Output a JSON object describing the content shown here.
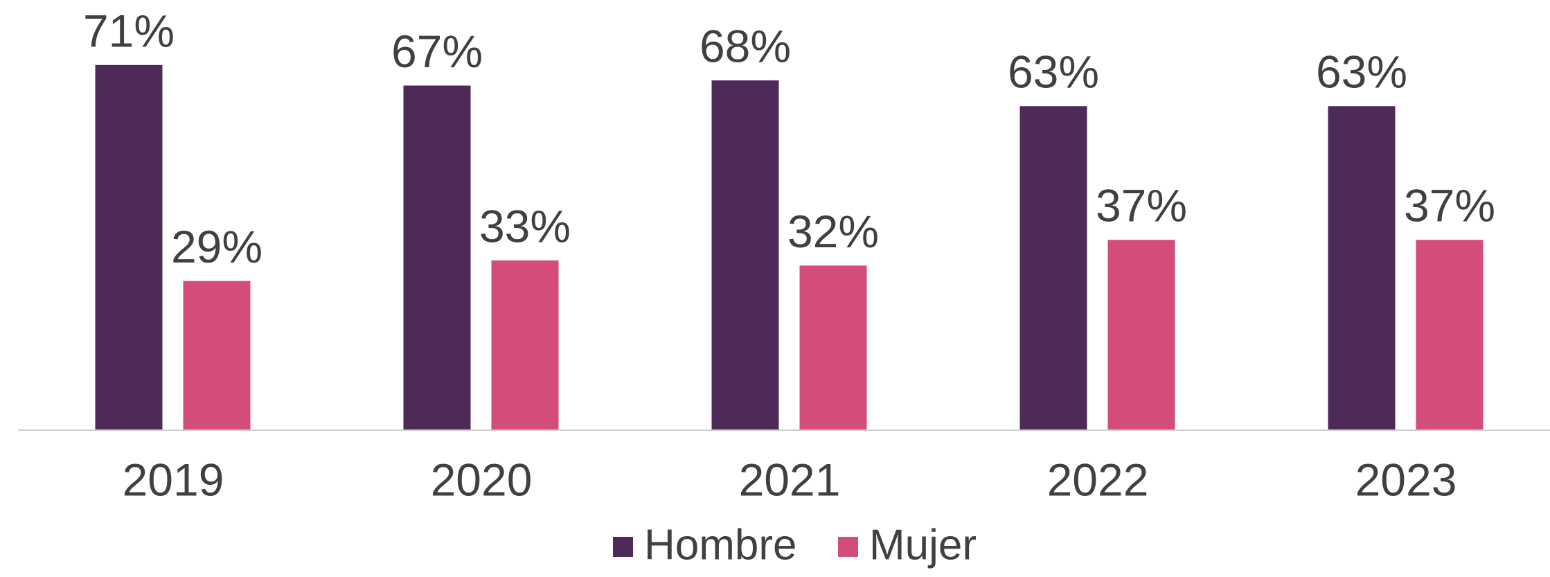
{
  "chart_data": {
    "type": "bar",
    "categories": [
      "2019",
      "2020",
      "2021",
      "2022",
      "2023"
    ],
    "series": [
      {
        "name": "Hombre",
        "color": "#4e2a59",
        "values": [
          71,
          67,
          68,
          63,
          63
        ],
        "value_labels": [
          "71%",
          "67%",
          "68%",
          "63%",
          "63%"
        ]
      },
      {
        "name": "Mujer",
        "color": "#d34c7a",
        "values": [
          29,
          33,
          32,
          37,
          37
        ],
        "value_labels": [
          "29%",
          "33%",
          "32%",
          "37%",
          "37%"
        ]
      }
    ],
    "ylim": [
      0,
      80
    ],
    "legend": "bottom"
  }
}
